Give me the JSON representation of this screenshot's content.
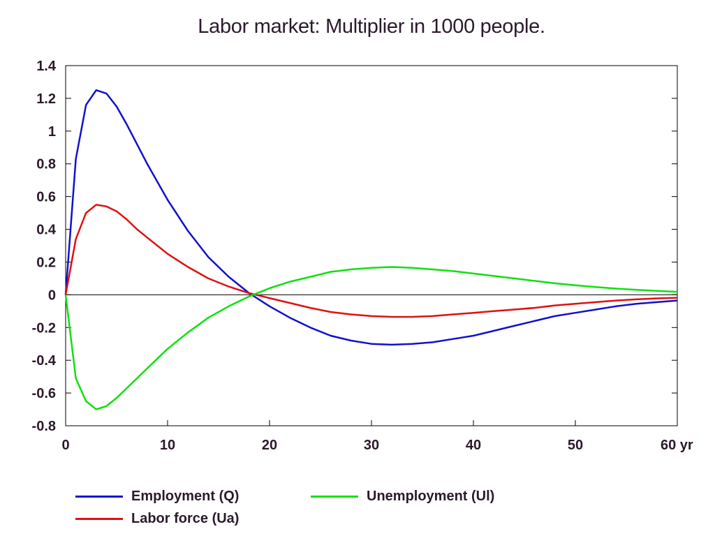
{
  "chart_data": {
    "type": "line",
    "title": "Labor market: Multiplier in 1000 people.",
    "xlabel": "",
    "ylabel": "",
    "xlim": [
      0,
      60
    ],
    "ylim": [
      -0.8,
      1.4
    ],
    "x_ticks": [
      0,
      10,
      20,
      30,
      40,
      50,
      60
    ],
    "x_tick_labels": [
      "0",
      "10",
      "20",
      "30",
      "40",
      "50",
      "60 yr"
    ],
    "y_ticks": [
      -0.8,
      -0.6,
      -0.4,
      -0.2,
      0,
      0.2,
      0.4,
      0.6,
      0.8,
      1,
      1.2,
      1.4
    ],
    "y_tick_labels": [
      "-0.8",
      "-0.6",
      "-0.4",
      "-0.2",
      "0",
      "0.2",
      "0.4",
      "0.6",
      "0.8",
      "1",
      "1.2",
      "1.4"
    ],
    "grid": false,
    "zero_line": true,
    "legend_position": "bottom",
    "series": [
      {
        "name": "Employment (Q)",
        "color": "#1010d0",
        "x": [
          0,
          1,
          2,
          3,
          4,
          5,
          6,
          7,
          8,
          9,
          10,
          12,
          14,
          16,
          18,
          20,
          22,
          24,
          26,
          28,
          30,
          32,
          34,
          36,
          38,
          40,
          42,
          44,
          46,
          48,
          50,
          52,
          54,
          56,
          58,
          60
        ],
        "y": [
          0,
          0.83,
          1.16,
          1.25,
          1.23,
          1.15,
          1.04,
          0.92,
          0.8,
          0.69,
          0.58,
          0.39,
          0.23,
          0.11,
          0.01,
          -0.07,
          -0.14,
          -0.2,
          -0.25,
          -0.28,
          -0.3,
          -0.305,
          -0.3,
          -0.29,
          -0.27,
          -0.25,
          -0.22,
          -0.19,
          -0.16,
          -0.13,
          -0.11,
          -0.09,
          -0.07,
          -0.055,
          -0.045,
          -0.035
        ]
      },
      {
        "name": "Labor force (Ua)",
        "color": "#e01010",
        "x": [
          0,
          1,
          2,
          3,
          4,
          5,
          6,
          7,
          8,
          9,
          10,
          12,
          14,
          16,
          18,
          20,
          22,
          24,
          26,
          28,
          30,
          32,
          34,
          36,
          38,
          40,
          42,
          44,
          46,
          48,
          50,
          52,
          54,
          56,
          58,
          60
        ],
        "y": [
          0,
          0.34,
          0.5,
          0.55,
          0.54,
          0.51,
          0.46,
          0.4,
          0.35,
          0.3,
          0.25,
          0.17,
          0.1,
          0.05,
          0.01,
          -0.02,
          -0.05,
          -0.08,
          -0.105,
          -0.12,
          -0.13,
          -0.135,
          -0.135,
          -0.13,
          -0.12,
          -0.11,
          -0.1,
          -0.09,
          -0.08,
          -0.065,
          -0.055,
          -0.045,
          -0.035,
          -0.028,
          -0.022,
          -0.018
        ]
      },
      {
        "name": "Unemployment (Ul)",
        "color": "#10e010",
        "x": [
          0,
          1,
          2,
          3,
          4,
          5,
          6,
          7,
          8,
          9,
          10,
          12,
          14,
          16,
          18,
          20,
          22,
          24,
          26,
          28,
          30,
          32,
          34,
          36,
          38,
          40,
          42,
          44,
          46,
          48,
          50,
          52,
          54,
          56,
          58,
          60
        ],
        "y": [
          0,
          -0.51,
          -0.65,
          -0.7,
          -0.68,
          -0.63,
          -0.57,
          -0.51,
          -0.45,
          -0.39,
          -0.33,
          -0.23,
          -0.14,
          -0.07,
          -0.01,
          0.04,
          0.08,
          0.11,
          0.14,
          0.155,
          0.165,
          0.17,
          0.165,
          0.155,
          0.145,
          0.13,
          0.115,
          0.1,
          0.085,
          0.07,
          0.058,
          0.047,
          0.038,
          0.03,
          0.024,
          0.018
        ]
      }
    ]
  }
}
